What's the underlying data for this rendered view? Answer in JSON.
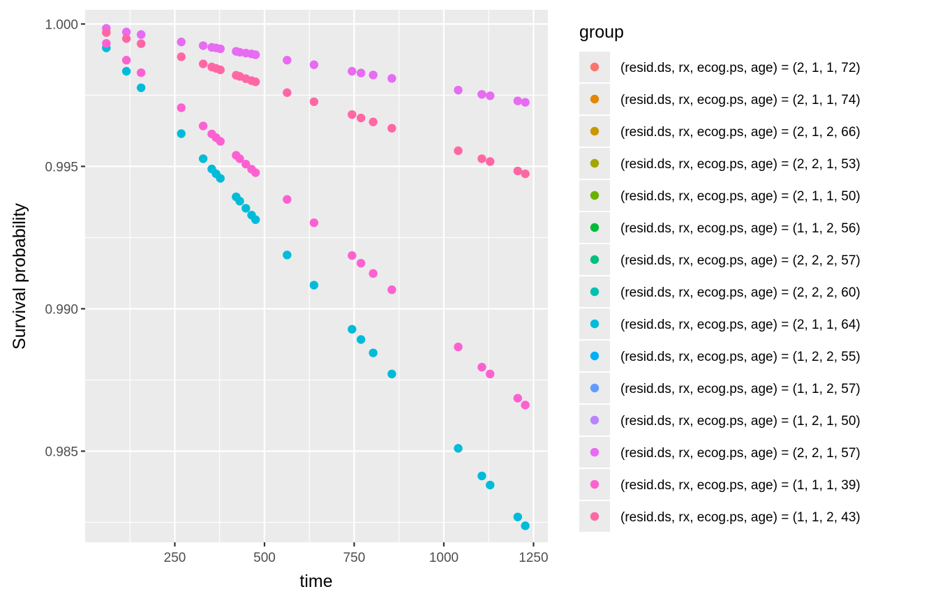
{
  "chart_data": {
    "type": "scatter",
    "title": "",
    "xlabel": "time",
    "ylabel": "Survival probability",
    "xlim": [
      0,
      1290
    ],
    "ylim": [
      0.9818,
      1.0005
    ],
    "grid": true,
    "legend_position": "right",
    "legend_title": "group",
    "x_ticks": [
      {
        "value": 250,
        "label": "250"
      },
      {
        "value": 500,
        "label": "500"
      },
      {
        "value": 750,
        "label": "750"
      },
      {
        "value": 1000,
        "label": "1000"
      },
      {
        "value": 1250,
        "label": "1250"
      }
    ],
    "y_ticks": [
      {
        "value": 0.985,
        "label": "0.985"
      },
      {
        "value": 0.99,
        "label": "0.990"
      },
      {
        "value": 0.995,
        "label": "0.995"
      },
      {
        "value": 1.0,
        "label": "1.000"
      }
    ],
    "series": [
      {
        "name": "(resid.ds, rx, ecog.ps, age) = (2, 1, 1, 72)",
        "color": "#F8766D",
        "x": [],
        "y": []
      },
      {
        "name": "(resid.ds, rx, ecog.ps, age) = (2, 1, 1, 74)",
        "color": "#E58700",
        "x": [],
        "y": []
      },
      {
        "name": "(resid.ds, rx, ecog.ps, age) = (2, 1, 2, 66)",
        "color": "#C99800",
        "x": [],
        "y": []
      },
      {
        "name": "(resid.ds, rx, ecog.ps, age) = (2, 2, 1, 53)",
        "color": "#A3A500",
        "x": [],
        "y": []
      },
      {
        "name": "(resid.ds, rx, ecog.ps, age) = (2, 1, 1, 50)",
        "color": "#6BB100",
        "x": [],
        "y": []
      },
      {
        "name": "(resid.ds, rx, ecog.ps, age) = (1, 1, 2, 56)",
        "color": "#00BA38",
        "x": [],
        "y": []
      },
      {
        "name": "(resid.ds, rx, ecog.ps, age) = (2, 2, 2, 57)",
        "color": "#00BF7D",
        "x": [],
        "y": []
      },
      {
        "name": "(resid.ds, rx, ecog.ps, age) = (2, 2, 2, 60)",
        "color": "#00C0AF",
        "x": [],
        "y": []
      },
      {
        "name": "(resid.ds, rx, ecog.ps, age) = (2, 1, 1, 64)",
        "color": "#00BCD8",
        "x": [
          59,
          115,
          156,
          268,
          329,
          353,
          365,
          377,
          421,
          431,
          448,
          464,
          475,
          563,
          638,
          744,
          769,
          803,
          855,
          1040,
          1106,
          1129,
          1206,
          1227
        ],
        "y": [
          0.99916,
          0.99834,
          0.99776,
          0.99615,
          0.99527,
          0.99491,
          0.99474,
          0.99458,
          0.99393,
          0.99378,
          0.99353,
          0.99329,
          0.99313,
          0.99189,
          0.99083,
          0.98928,
          0.98892,
          0.98845,
          0.98771,
          0.9851,
          0.98413,
          0.98381,
          0.98269,
          0.98238
        ]
      },
      {
        "name": "(resid.ds, rx, ecog.ps, age) = (1, 2, 2, 55)",
        "color": "#00B0F6",
        "x": [],
        "y": []
      },
      {
        "name": "(resid.ds, rx, ecog.ps, age) = (1, 1, 2, 57)",
        "color": "#619CFF",
        "x": [],
        "y": []
      },
      {
        "name": "(resid.ds, rx, ecog.ps, age) = (1, 2, 1, 50)",
        "color": "#B983FF",
        "x": [],
        "y": []
      },
      {
        "name": "(resid.ds, rx, ecog.ps, age) = (2, 2, 1, 57)",
        "color": "#E76BF3",
        "x": [
          59,
          115,
          156,
          268,
          329,
          353,
          365,
          377,
          421,
          431,
          448,
          464,
          475,
          563,
          638,
          744,
          769,
          803,
          855,
          1040,
          1106,
          1129,
          1206,
          1227
        ],
        "y": [
          0.99985,
          0.99972,
          0.99963,
          0.99937,
          0.99924,
          0.99918,
          0.99916,
          0.99913,
          0.99904,
          0.99901,
          0.99898,
          0.99895,
          0.99892,
          0.99873,
          0.99857,
          0.99834,
          0.99828,
          0.99821,
          0.99809,
          0.99768,
          0.99753,
          0.99748,
          0.9973,
          0.99725
        ]
      },
      {
        "name": "(resid.ds, rx, ecog.ps, age) = (1, 1, 1, 39)",
        "color": "#FD61D1",
        "x": [
          59,
          115,
          156,
          268,
          329,
          353,
          365,
          377,
          421,
          431,
          448,
          464,
          475,
          563,
          638,
          744,
          769,
          803,
          855,
          1040,
          1106,
          1129,
          1206,
          1227
        ],
        "y": [
          0.99932,
          0.99873,
          0.99829,
          0.99706,
          0.99642,
          0.99614,
          0.99601,
          0.99588,
          0.99539,
          0.99527,
          0.99508,
          0.9949,
          0.99478,
          0.99384,
          0.99302,
          0.99187,
          0.9916,
          0.99124,
          0.99067,
          0.98866,
          0.98795,
          0.98771,
          0.98686,
          0.98662
        ]
      },
      {
        "name": "(resid.ds, rx, ecog.ps, age) = (1, 1, 2, 43)",
        "color": "#FF67A4",
        "x": [
          59,
          115,
          156,
          268,
          329,
          353,
          365,
          377,
          421,
          431,
          448,
          464,
          475,
          563,
          638,
          744,
          769,
          803,
          855,
          1040,
          1106,
          1129,
          1206,
          1227
        ],
        "y": [
          0.9997,
          0.99949,
          0.99931,
          0.99885,
          0.9986,
          0.99849,
          0.99844,
          0.99839,
          0.9982,
          0.99816,
          0.99808,
          0.99801,
          0.99797,
          0.99759,
          0.99727,
          0.99682,
          0.9967,
          0.99656,
          0.99634,
          0.99555,
          0.99527,
          0.99517,
          0.99484,
          0.99474
        ]
      }
    ]
  }
}
